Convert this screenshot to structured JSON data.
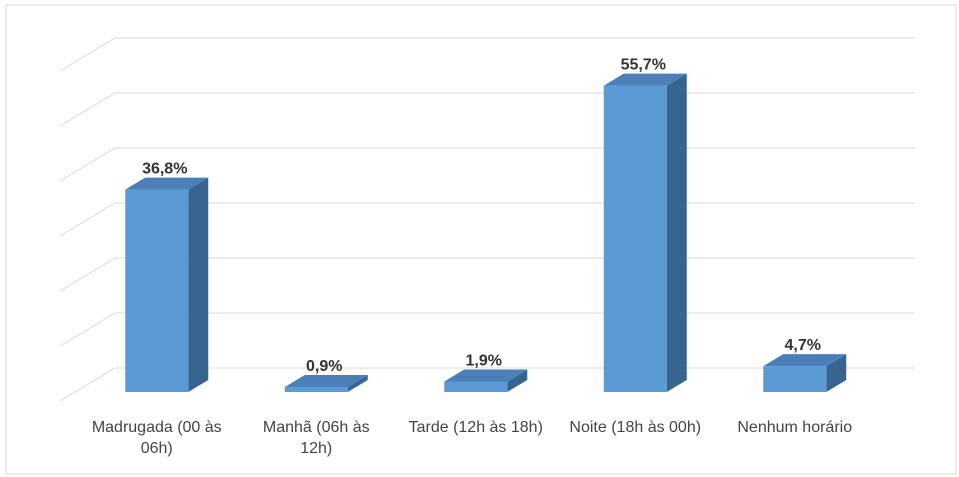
{
  "chart_data": {
    "type": "bar3d",
    "categories": [
      "Madrugada (00 às 06h)",
      "Manhã (06h às 12h)",
      "Tarde (12h às 18h)",
      "Noite (18h às 00h)",
      "Nenhum horário"
    ],
    "values": [
      36.8,
      0.9,
      1.9,
      55.7,
      4.7
    ],
    "value_labels": [
      "36,8%",
      "0,9%",
      "1,9%",
      "55,7%",
      "4,7%"
    ],
    "color": "#5b9bd5",
    "ylim": [
      0,
      60
    ],
    "yticks": [
      0,
      10,
      20,
      30,
      40,
      50,
      60
    ],
    "grid": true
  }
}
